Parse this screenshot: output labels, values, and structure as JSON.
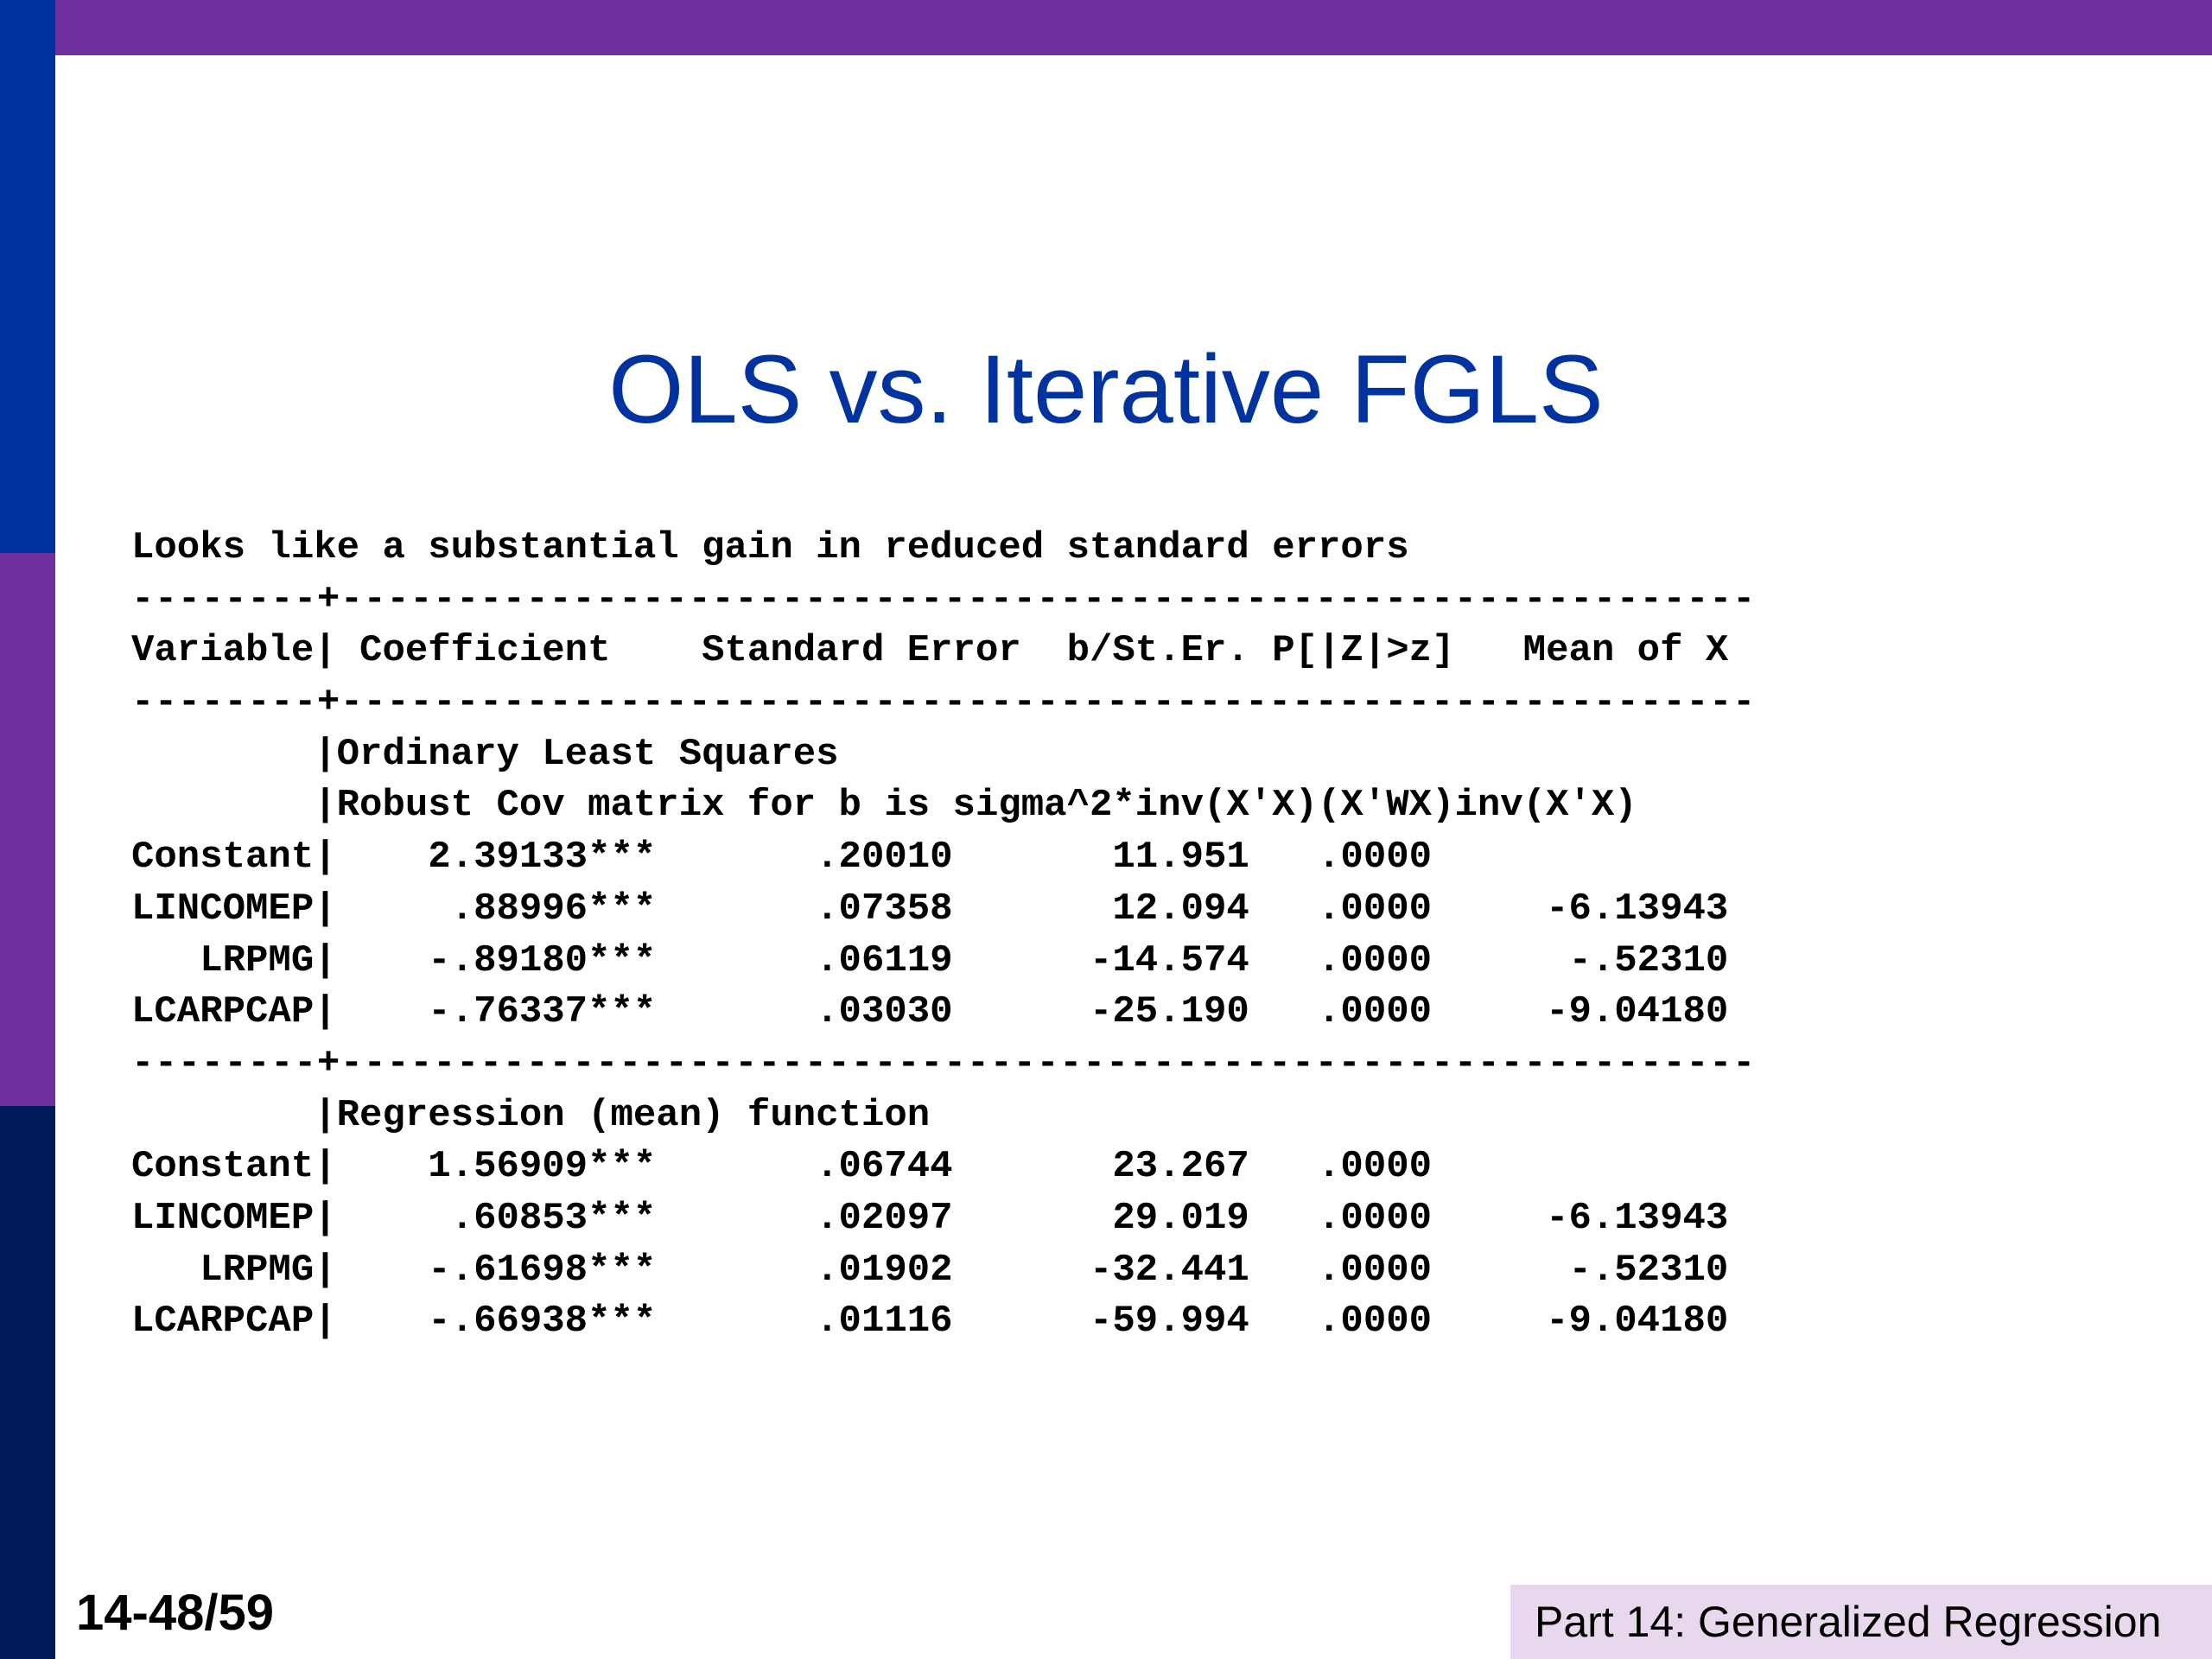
{
  "slide": {
    "title": "OLS vs. Iterative FGLS",
    "page_number": "14-48/59",
    "footer_label": "Part 14: Generalized Regression"
  },
  "output": {
    "intro": "Looks like a substantial gain in reduced standard errors",
    "separator": "--------+-------------------------------------------------------------",
    "header": "Variable| Coefficient    Standard Error  b/St.Er. P[|Z|>z]   Mean of X",
    "ols_heading_1": "        |Ordinary Least Squares",
    "ols_heading_2": "        |Robust Cov matrix for b is sigma^2*inv(X'X)(X'WX)inv(X'X)",
    "ols_rows": [
      "Constant|    2.39133***       .20010       11.951   .0000",
      "LINCOMEP|     .88996***       .07358       12.094   .0000     -6.13943",
      "   LRPMG|    -.89180***       .06119      -14.574   .0000      -.52310",
      "LCARPCAP|    -.76337***       .03030      -25.190   .0000     -9.04180"
    ],
    "fgls_heading": "        |Regression (mean) function",
    "fgls_rows": [
      "Constant|    1.56909***       .06744       23.267   .0000",
      "LINCOMEP|     .60853***       .02097       29.019   .0000     -6.13943",
      "   LRPMG|    -.61698***       .01902      -32.441   .0000      -.52310",
      "LCARPCAP|    -.66938***       .01116      -59.994   .0000     -9.04180"
    ]
  }
}
